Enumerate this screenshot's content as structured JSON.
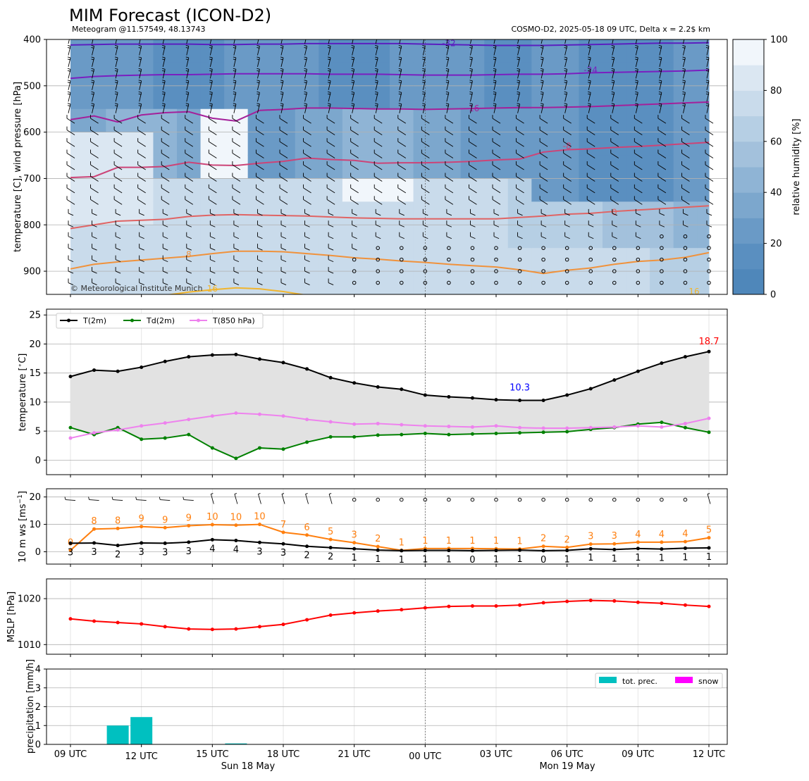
{
  "header": {
    "title": "MIM Forecast (ICON-D2)",
    "subtitle_left": "Meteogram @11.57549, 48.13743",
    "subtitle_right": "COSMO-D2, 2025-05-18 09 UTC, Delta x = 2.2$ km",
    "copyright": "© Meteorological Institute Munich"
  },
  "time_axis": {
    "tick_labels": [
      "09 UTC",
      "12 UTC",
      "15 UTC",
      "18 UTC",
      "21 UTC",
      "00 UTC",
      "03 UTC",
      "06 UTC",
      "09 UTC",
      "12 UTC"
    ],
    "day_labels": [
      "Sun 18 May",
      "Mon 19 May"
    ]
  },
  "chart_data": [
    {
      "type": "heatmap",
      "panel": "upper-air",
      "ylabel": "temperature [C], wind pressure [hPa]",
      "ylim": [
        950,
        400
      ],
      "yticks": [
        400,
        500,
        600,
        700,
        800,
        900
      ],
      "colorbar": {
        "label": "relative humidity [%]",
        "range": [
          0,
          100
        ],
        "ticks": [
          0,
          20,
          40,
          60,
          80,
          100
        ],
        "levels": [
          0,
          10,
          20,
          30,
          40,
          50,
          60,
          70,
          80,
          90,
          100
        ],
        "colors": [
          "#4f87ba",
          "#5a8fc0",
          "#6a9ac6",
          "#7ca7cd",
          "#8fb4d5",
          "#a3c1dc",
          "#b6cfe4",
          "#c9dbeb",
          "#dbe7f2",
          "#f1f6fb"
        ]
      },
      "isotherm_labels": [
        {
          "label": "-32",
          "color": "#5b1fc0"
        },
        {
          "label": "-24",
          "color": "#7a1fc0"
        },
        {
          "label": "-16",
          "color": "#a4209a"
        },
        {
          "label": "-8",
          "color": "#cc4477"
        },
        {
          "label": "0",
          "color": "#e06464"
        },
        {
          "label": "8",
          "color": "#f0923c"
        },
        {
          "label": "16",
          "color": "#f1b52e"
        }
      ]
    },
    {
      "type": "line",
      "panel": "temperature",
      "ylabel": "temperature [$^\\circ$C]",
      "ylim": [
        -2.5,
        26
      ],
      "yticks": [
        0,
        5,
        10,
        15,
        20,
        25
      ],
      "series": [
        {
          "name": "T(2m)",
          "color": "#000000",
          "values": [
            14.4,
            15.5,
            15.3,
            16.0,
            17.0,
            17.8,
            18.1,
            18.2,
            17.4,
            16.8,
            15.7,
            14.2,
            13.3,
            12.6,
            12.2,
            11.2,
            10.9,
            10.7,
            10.4,
            10.3,
            10.3,
            11.2,
            12.3,
            13.8,
            15.3,
            16.7,
            17.8,
            18.7
          ]
        },
        {
          "name": "Td(2m)",
          "color": "#008000",
          "values": [
            5.6,
            4.4,
            5.6,
            3.6,
            3.8,
            4.4,
            2.1,
            0.3,
            2.1,
            1.9,
            3.1,
            4.0,
            4.0,
            4.3,
            4.4,
            4.6,
            4.4,
            4.5,
            4.6,
            4.7,
            4.8,
            4.9,
            5.3,
            5.6,
            6.2,
            6.5,
            5.6,
            4.8
          ]
        },
        {
          "name": "T(850 hPa)",
          "color": "#ee82ee",
          "values": [
            3.8,
            4.7,
            5.2,
            5.9,
            6.4,
            7.0,
            7.6,
            8.1,
            7.9,
            7.6,
            7.0,
            6.6,
            6.2,
            6.3,
            6.1,
            5.9,
            5.8,
            5.7,
            5.9,
            5.6,
            5.5,
            5.5,
            5.6,
            5.7,
            5.9,
            5.7,
            6.3,
            7.2
          ]
        }
      ],
      "annotations": [
        {
          "text": "18.7",
          "color": "#ff0000"
        },
        {
          "text": "10.3",
          "color": "#0000ff"
        }
      ]
    },
    {
      "type": "line",
      "panel": "wind",
      "ylabel": "10 m ws [ms$^{-1}$]",
      "ylim": [
        -4.5,
        23
      ],
      "yticks": [
        0,
        10,
        20
      ],
      "series": [
        {
          "name": "gust",
          "color": "#ff7f0e",
          "values": [
            0,
            8,
            8,
            9,
            9,
            9,
            10,
            10,
            10,
            7,
            6,
            5,
            3,
            2,
            1,
            1,
            1,
            1,
            1,
            1,
            2,
            2,
            3,
            3,
            4,
            4,
            4,
            5
          ],
          "plot": [
            0.5,
            8.3,
            8.5,
            9.2,
            8.8,
            9.5,
            9.9,
            9.7,
            10.0,
            7.1,
            6.1,
            4.5,
            3.3,
            1.9,
            0.5,
            1.2,
            1.2,
            1.2,
            1.1,
            1.0,
            2.0,
            1.6,
            2.8,
            2.9,
            3.5,
            3.5,
            3.7,
            5.1
          ]
        },
        {
          "name": "mean",
          "color": "#000000",
          "values": [
            3,
            3,
            2,
            3,
            3,
            3,
            4,
            4,
            3,
            3,
            2,
            2,
            1,
            1,
            1,
            1,
            1,
            0,
            1,
            1,
            0,
            1,
            1,
            1,
            1,
            1,
            1,
            1
          ],
          "plot": [
            3.1,
            3.2,
            2.3,
            3.2,
            3.1,
            3.5,
            4.4,
            4.1,
            3.4,
            2.9,
            2.0,
            1.5,
            1.1,
            0.6,
            0.4,
            0.5,
            0.5,
            0.4,
            0.5,
            0.6,
            0.4,
            0.5,
            1.1,
            0.8,
            1.2,
            1.0,
            1.3,
            1.4
          ]
        }
      ]
    },
    {
      "type": "line",
      "panel": "pressure",
      "ylabel": "MSLP [hPa]",
      "ylim": [
        1007.9,
        1024.3
      ],
      "yticks": [
        1010,
        1020
      ],
      "series": [
        {
          "name": "MSLP",
          "color": "#ff0000",
          "values": [
            1015.6,
            1015.1,
            1014.8,
            1014.5,
            1013.9,
            1013.4,
            1013.3,
            1013.4,
            1013.9,
            1014.4,
            1015.4,
            1016.4,
            1016.9,
            1017.3,
            1017.6,
            1018.0,
            1018.3,
            1018.4,
            1018.4,
            1018.6,
            1019.1,
            1019.4,
            1019.6,
            1019.5,
            1019.2,
            1019.0,
            1018.6,
            1018.3
          ]
        }
      ]
    },
    {
      "type": "bar",
      "panel": "precipitation",
      "ylabel": "precipitation [mm/h]",
      "ylim": [
        0,
        4
      ],
      "yticks": [
        0,
        1,
        2,
        3,
        4
      ],
      "series": [
        {
          "name": "tot. prec.",
          "color": "#00c0c0",
          "values": [
            0,
            0,
            1.0,
            1.45,
            0,
            0,
            0,
            0.05,
            0,
            0,
            0,
            0,
            0,
            0,
            0,
            0,
            0,
            0,
            0,
            0,
            0,
            0,
            0,
            0,
            0,
            0,
            0,
            0
          ]
        },
        {
          "name": "snow",
          "color": "#ff00ff",
          "values": [
            0,
            0,
            0,
            0,
            0,
            0,
            0,
            0,
            0,
            0,
            0,
            0,
            0,
            0,
            0,
            0,
            0,
            0,
            0,
            0,
            0,
            0,
            0,
            0,
            0,
            0,
            0,
            0
          ]
        }
      ]
    }
  ]
}
